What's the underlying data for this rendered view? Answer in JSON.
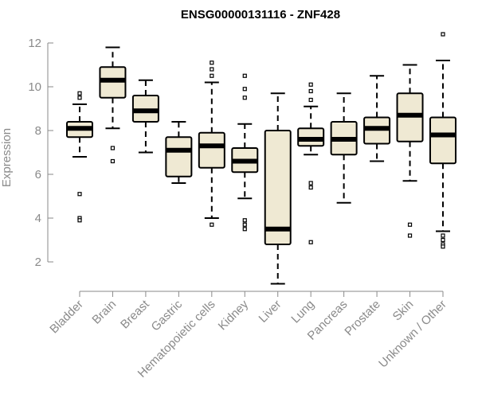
{
  "chart_data": {
    "type": "boxplot",
    "title": "ENSG00000131116 - ZNF428",
    "ylabel": "Expression",
    "xlabel": "",
    "ylim": [
      1,
      12.4
    ],
    "yticks": [
      2,
      4,
      6,
      8,
      10,
      12
    ],
    "colors": {
      "box_fill": "#efe9d3",
      "stroke": "#000000",
      "axis": "#8a8a8a"
    },
    "categories": [
      "Bladder",
      "Brain",
      "Breast",
      "Gastric",
      "Hematopoietic cells",
      "Kidney",
      "Liver",
      "Lung",
      "Pancreas",
      "Prostate",
      "Skin",
      "Unknown / Other"
    ],
    "boxes": [
      {
        "name": "Bladder",
        "whisker_low": 6.8,
        "q1": 7.7,
        "median": 8.1,
        "q3": 8.4,
        "whisker_high": 9.2,
        "outliers": [
          9.5,
          9.7,
          5.1,
          4.0,
          3.9
        ]
      },
      {
        "name": "Brain",
        "whisker_low": 8.1,
        "q1": 9.5,
        "median": 10.3,
        "q3": 10.9,
        "whisker_high": 11.8,
        "outliers": [
          7.2,
          6.6
        ]
      },
      {
        "name": "Breast",
        "whisker_low": 7.0,
        "q1": 8.4,
        "median": 8.9,
        "q3": 9.6,
        "whisker_high": 10.3,
        "outliers": []
      },
      {
        "name": "Gastric",
        "whisker_low": 5.6,
        "q1": 5.9,
        "median": 7.1,
        "q3": 7.7,
        "whisker_high": 8.4,
        "outliers": []
      },
      {
        "name": "Hematopoietic cells",
        "whisker_low": 4.0,
        "q1": 6.3,
        "median": 7.3,
        "q3": 7.9,
        "whisker_high": 10.2,
        "outliers": [
          10.5,
          10.8,
          11.1,
          3.7
        ]
      },
      {
        "name": "Kidney",
        "whisker_low": 4.9,
        "q1": 6.1,
        "median": 6.6,
        "q3": 7.2,
        "whisker_high": 8.3,
        "outliers": [
          9.5,
          9.9,
          10.5,
          3.9,
          3.7,
          3.5
        ]
      },
      {
        "name": "Liver",
        "whisker_low": 1.0,
        "q1": 2.8,
        "median": 3.5,
        "q3": 8.0,
        "whisker_high": 9.7,
        "outliers": []
      },
      {
        "name": "Lung",
        "whisker_low": 6.9,
        "q1": 7.3,
        "median": 7.6,
        "q3": 8.1,
        "whisker_high": 9.1,
        "outliers": [
          9.4,
          9.8,
          10.1,
          5.6,
          5.4,
          2.9
        ]
      },
      {
        "name": "Pancreas",
        "whisker_low": 4.7,
        "q1": 6.9,
        "median": 7.6,
        "q3": 8.4,
        "whisker_high": 9.7,
        "outliers": []
      },
      {
        "name": "Prostate",
        "whisker_low": 6.6,
        "q1": 7.4,
        "median": 8.1,
        "q3": 8.6,
        "whisker_high": 10.5,
        "outliers": []
      },
      {
        "name": "Skin",
        "whisker_low": 5.7,
        "q1": 7.5,
        "median": 8.7,
        "q3": 9.7,
        "whisker_high": 11.0,
        "outliers": [
          3.7,
          3.2
        ]
      },
      {
        "name": "Unknown / Other",
        "whisker_low": 3.4,
        "q1": 6.5,
        "median": 7.8,
        "q3": 8.6,
        "whisker_high": 11.2,
        "outliers": [
          12.4,
          3.2,
          3.0,
          2.8,
          2.7
        ]
      }
    ]
  }
}
